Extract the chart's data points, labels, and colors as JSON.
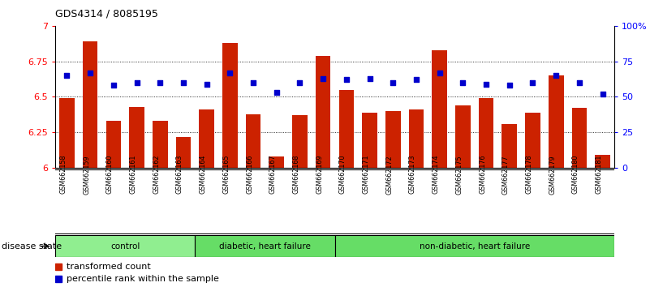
{
  "title": "GDS4314 / 8085195",
  "samples": [
    "GSM662158",
    "GSM662159",
    "GSM662160",
    "GSM662161",
    "GSM662162",
    "GSM662163",
    "GSM662164",
    "GSM662165",
    "GSM662166",
    "GSM662167",
    "GSM662168",
    "GSM662169",
    "GSM662170",
    "GSM662171",
    "GSM662172",
    "GSM662173",
    "GSM662174",
    "GSM662175",
    "GSM662176",
    "GSM662177",
    "GSM662178",
    "GSM662179",
    "GSM662180",
    "GSM662181"
  ],
  "bar_values": [
    6.49,
    6.89,
    6.33,
    6.43,
    6.33,
    6.22,
    6.41,
    6.88,
    6.38,
    6.08,
    6.37,
    6.79,
    6.55,
    6.39,
    6.4,
    6.41,
    6.83,
    6.44,
    6.49,
    6.31,
    6.39,
    6.65,
    6.42,
    6.09
  ],
  "percentile_values": [
    65,
    67,
    58,
    60,
    60,
    60,
    59,
    67,
    60,
    53,
    60,
    63,
    62,
    63,
    60,
    62,
    67,
    60,
    59,
    58,
    60,
    65,
    60,
    52
  ],
  "groups": [
    {
      "label": "control",
      "start": 0,
      "end": 5
    },
    {
      "label": "diabetic, heart failure",
      "start": 6,
      "end": 11
    },
    {
      "label": "non-diabetic, heart failure",
      "start": 12,
      "end": 23
    }
  ],
  "group_colors": [
    "#90EE90",
    "#66DD66",
    "#66DD66"
  ],
  "bar_color": "#CC2200",
  "dot_color": "#0000CC",
  "ylim_left": [
    6.0,
    7.0
  ],
  "ylim_right": [
    0,
    100
  ],
  "yticks_left": [
    6.0,
    6.25,
    6.5,
    6.75
  ],
  "ytick_labels_left": [
    "6",
    "6.25",
    "6.5",
    "6.75"
  ],
  "ytick_7": 7.0,
  "ytick_7_label": "7",
  "yticks_right": [
    0,
    25,
    50,
    75,
    100
  ],
  "ytick_labels_right": [
    "0",
    "25",
    "50",
    "75",
    "100%"
  ],
  "grid_values": [
    6.25,
    6.5,
    6.75
  ],
  "disease_state_label": "disease state",
  "legend_bar_label": "transformed count",
  "legend_dot_label": "percentile rank within the sample",
  "bar_width": 0.65,
  "cell_bg_color": "#D0D0D0",
  "cell_line_color": "#FFFFFF"
}
